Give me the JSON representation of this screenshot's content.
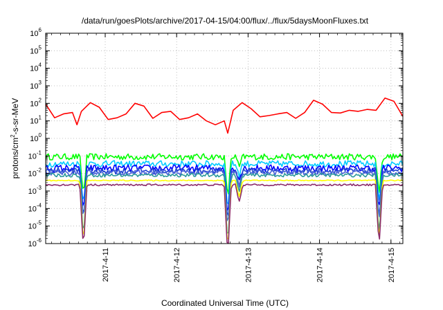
{
  "chart_data": {
    "type": "line",
    "title": "/data/run/goesPlots/archive/2017-04-15/04:00/flux/../flux/5daysMoonFluxes.txt",
    "xlabel": "Coordinated Universal Time (UTC)",
    "ylabel": {
      "pre": "protons/cm",
      "sup": "2",
      "post": "-s-sr-MeV"
    },
    "y_scale": "log",
    "ylim": [
      1e-06,
      1000000.0
    ],
    "y_ticks": [
      {
        "exp": -6,
        "base": "10",
        "sup": "-6"
      },
      {
        "exp": -5,
        "base": "10",
        "sup": "-5"
      },
      {
        "exp": -4,
        "base": "10",
        "sup": "-4"
      },
      {
        "exp": -3,
        "base": "10",
        "sup": "-3"
      },
      {
        "exp": -2,
        "base": "10",
        "sup": "-2"
      },
      {
        "exp": -1,
        "base": "10",
        "sup": "-1"
      },
      {
        "exp": 0,
        "base": "10",
        "sup": "0"
      },
      {
        "exp": 1,
        "base": "10",
        "sup": "1"
      },
      {
        "exp": 2,
        "base": "10",
        "sup": "2"
      },
      {
        "exp": 3,
        "base": "10",
        "sup": "3"
      },
      {
        "exp": 4,
        "base": "10",
        "sup": "4"
      },
      {
        "exp": 5,
        "base": "10",
        "sup": "5"
      },
      {
        "exp": 6,
        "base": "10",
        "sup": "6"
      }
    ],
    "x_range": [
      "2017-04-10 04:00",
      "2017-04-15 04:00"
    ],
    "x_ticks": [
      "2017-4-11",
      "2017-4-12",
      "2017-4-13",
      "2017-4-14",
      "2017-4-15"
    ],
    "grid": true,
    "dips": [
      "2017-04-10 16:40",
      "2017-04-12 17:10",
      "2017-04-12 21:00",
      "2017-04-14 20:00"
    ],
    "series": [
      {
        "color": "#ff0000",
        "x": [
          "2017-04-10 04:00",
          "2017-04-10 07:00",
          "2017-04-10 10:00",
          "2017-04-10 13:00",
          "2017-04-10 14:30",
          "2017-04-10 16:00",
          "2017-04-10 19:00",
          "2017-04-10 22:00",
          "2017-04-11 01:00",
          "2017-04-11 04:00",
          "2017-04-11 07:00",
          "2017-04-11 10:00",
          "2017-04-11 13:00",
          "2017-04-11 16:00",
          "2017-04-11 19:00",
          "2017-04-11 22:00",
          "2017-04-12 01:00",
          "2017-04-12 04:00",
          "2017-04-12 07:00",
          "2017-04-12 10:00",
          "2017-04-12 13:00",
          "2017-04-12 16:00",
          "2017-04-12 17:10",
          "2017-04-12 19:00",
          "2017-04-12 22:00",
          "2017-04-13 01:00",
          "2017-04-13 04:00",
          "2017-04-13 07:00",
          "2017-04-13 10:00",
          "2017-04-13 13:00",
          "2017-04-13 16:00",
          "2017-04-13 19:00",
          "2017-04-13 22:00",
          "2017-04-14 01:00",
          "2017-04-14 04:00",
          "2017-04-14 07:00",
          "2017-04-14 10:00",
          "2017-04-14 13:00",
          "2017-04-14 16:00",
          "2017-04-14 19:00",
          "2017-04-14 22:00",
          "2017-04-15 01:00",
          "2017-04-15 04:00"
        ],
        "values": [
          90,
          15,
          25,
          30,
          6,
          35,
          110,
          60,
          12,
          15,
          25,
          100,
          70,
          14,
          30,
          35,
          12,
          15,
          25,
          10,
          6,
          10,
          2,
          40,
          110,
          50,
          17,
          20,
          25,
          30,
          14,
          30,
          150,
          90,
          30,
          28,
          40,
          35,
          45,
          40,
          200,
          130,
          18
        ]
      },
      {
        "color": "#00ff00",
        "base": -1.05,
        "amp": 0.18
      },
      {
        "color": "#00ccff",
        "base": -1.45,
        "amp": 0.18
      },
      {
        "color": "#0000ff",
        "base": -1.7,
        "amp": 0.2
      },
      {
        "color": "#1a3fd0",
        "base": -1.85,
        "amp": 0.18
      },
      {
        "color": "#4a63d8",
        "base": -1.95,
        "amp": 0.15
      },
      {
        "color": "#2a9a9a",
        "base": -2.1,
        "amp": 0.1
      },
      {
        "color": "#ffff00",
        "base": -2.4,
        "amp": 0.03
      },
      {
        "color": "#8b2a6a",
        "base": -2.65,
        "amp": 0.05
      }
    ]
  }
}
